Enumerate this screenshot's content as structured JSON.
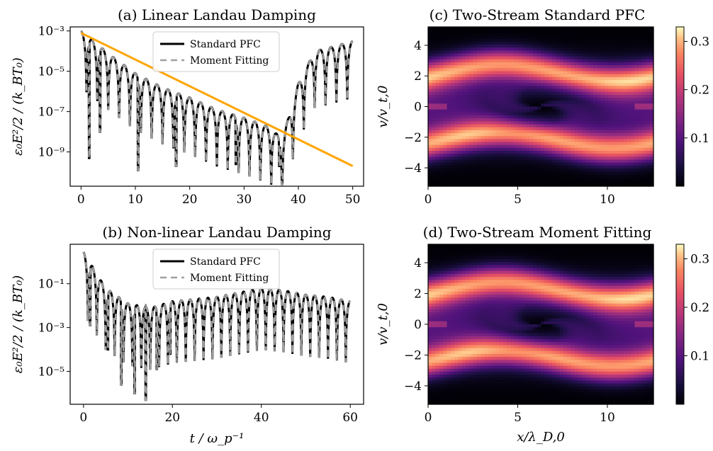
{
  "chart_data": [
    {
      "id": "a",
      "type": "line",
      "title": "(a) Linear Landau Damping",
      "xlabel": "",
      "ylabel": "ε₀E²/2 / (k_BT₀)",
      "yscale": "log",
      "xlim": [
        -2,
        52
      ],
      "ylim_log10": [
        -10.7,
        -2.8
      ],
      "xticks": [
        0,
        10,
        20,
        30,
        40,
        50
      ],
      "yticks": [
        {
          "exp": -3,
          "label": "10⁻³"
        },
        {
          "exp": -5,
          "label": "10⁻⁵"
        },
        {
          "exp": -7,
          "label": "10⁻⁷"
        },
        {
          "exp": -9,
          "label": "10⁻⁹"
        }
      ],
      "legend": {
        "position": "top-center",
        "entries": [
          "Standard PFC",
          "Moment Fitting"
        ]
      },
      "series": [
        {
          "name": "Standard PFC",
          "style": "solid",
          "color": "#000000",
          "envelope_log10": [
            [
              0,
              -3.0
            ],
            [
              5,
              -4.1
            ],
            [
              10,
              -5.1
            ],
            [
              15,
              -5.8
            ],
            [
              20,
              -6.3
            ],
            [
              25,
              -6.9
            ],
            [
              30,
              -7.3
            ],
            [
              35,
              -7.8
            ],
            [
              37,
              -8.4
            ],
            [
              40,
              -5.6
            ],
            [
              43,
              -4.0
            ],
            [
              46,
              -3.8
            ],
            [
              50,
              -3.5
            ]
          ],
          "oscillation_period": 2.0,
          "deep_minima_log10": [
            [
              1.5,
              -9.3
            ],
            [
              3.5,
              -8.0
            ],
            [
              10.5,
              -9.9
            ],
            [
              17.5,
              -9.7
            ],
            [
              28.5,
              -9.6
            ],
            [
              36.5,
              -9.7
            ]
          ]
        },
        {
          "name": "Moment Fitting",
          "style": "dashed",
          "color": "#999999"
        },
        {
          "name": "",
          "style": "solid",
          "color": "#FFA500",
          "line_log10": [
            [
              0,
              -3.1
            ],
            [
              50,
              -9.7
            ]
          ]
        }
      ]
    },
    {
      "id": "b",
      "type": "line",
      "title": "(b) Non-linear Landau Damping",
      "xlabel": "t / ω_p⁻¹",
      "ylabel": "ε₀E²/2 / (k_BT₀)",
      "yscale": "log",
      "xlim": [
        -3,
        63
      ],
      "ylim_log10": [
        -6.5,
        0.8
      ],
      "xticks": [
        0,
        20,
        40,
        60
      ],
      "yticks": [
        {
          "exp": -1,
          "label": "10⁻¹"
        },
        {
          "exp": -3,
          "label": "10⁻³"
        },
        {
          "exp": -5,
          "label": "10⁻⁵"
        }
      ],
      "legend": {
        "position": "top-center",
        "entries": [
          "Standard PFC",
          "Moment Fitting"
        ]
      },
      "series": [
        {
          "name": "Standard PFC",
          "style": "solid",
          "color": "#000000",
          "envelope_log10": [
            [
              0,
              0.45
            ],
            [
              5,
              -1.2
            ],
            [
              10,
              -1.9
            ],
            [
              15,
              -2.1
            ],
            [
              20,
              -1.8
            ],
            [
              25,
              -1.7
            ],
            [
              30,
              -1.6
            ],
            [
              35,
              -1.4
            ],
            [
              40,
              -1.2
            ],
            [
              45,
              -1.3
            ],
            [
              50,
              -1.5
            ],
            [
              55,
              -1.6
            ],
            [
              60,
              -1.8
            ]
          ],
          "oscillation_period": 2.0,
          "deep_minima_log10": [
            [
              1.5,
              -2.9
            ],
            [
              5.5,
              -4.0
            ],
            [
              8.5,
              -5.6
            ],
            [
              11.5,
              -6.0
            ],
            [
              14.0,
              -6.3
            ],
            [
              16.5,
              -4.9
            ],
            [
              19.5,
              -4.2
            ]
          ]
        },
        {
          "name": "Moment Fitting",
          "style": "dashed",
          "color": "#999999"
        }
      ]
    },
    {
      "id": "c",
      "type": "heatmap",
      "title": "(c) Two-Stream Standard PFC",
      "xlabel": "",
      "ylabel": "v/v_t,0",
      "xlim": [
        0,
        12.57
      ],
      "ylim": [
        -5.2,
        5.2
      ],
      "xticks": [
        0,
        5,
        10
      ],
      "yticks": [
        4,
        2,
        0,
        -2,
        -4
      ],
      "colorbar": {
        "colormap": "magma",
        "range": [
          0,
          0.33
        ],
        "ticks": [
          0.1,
          0.2,
          0.3
        ]
      },
      "structure": {
        "hole_center": [
          6.28,
          0
        ],
        "band_speed": 2.2,
        "peak_value": 0.32
      }
    },
    {
      "id": "d",
      "type": "heatmap",
      "title": "(d) Two-Stream Moment Fitting",
      "xlabel": "x/λ_D,0",
      "ylabel": "v/v_t,0",
      "xlim": [
        0,
        12.57
      ],
      "ylim": [
        -5.2,
        5.2
      ],
      "xticks": [
        0,
        5,
        10
      ],
      "yticks": [
        4,
        2,
        0,
        -2,
        -4
      ],
      "colorbar": {
        "colormap": "magma",
        "range": [
          0,
          0.33
        ],
        "ticks": [
          0.1,
          0.2,
          0.3
        ]
      },
      "structure": {
        "hole_center": [
          6.28,
          0
        ],
        "band_speed": 2.2,
        "peak_value": 0.32
      }
    }
  ]
}
